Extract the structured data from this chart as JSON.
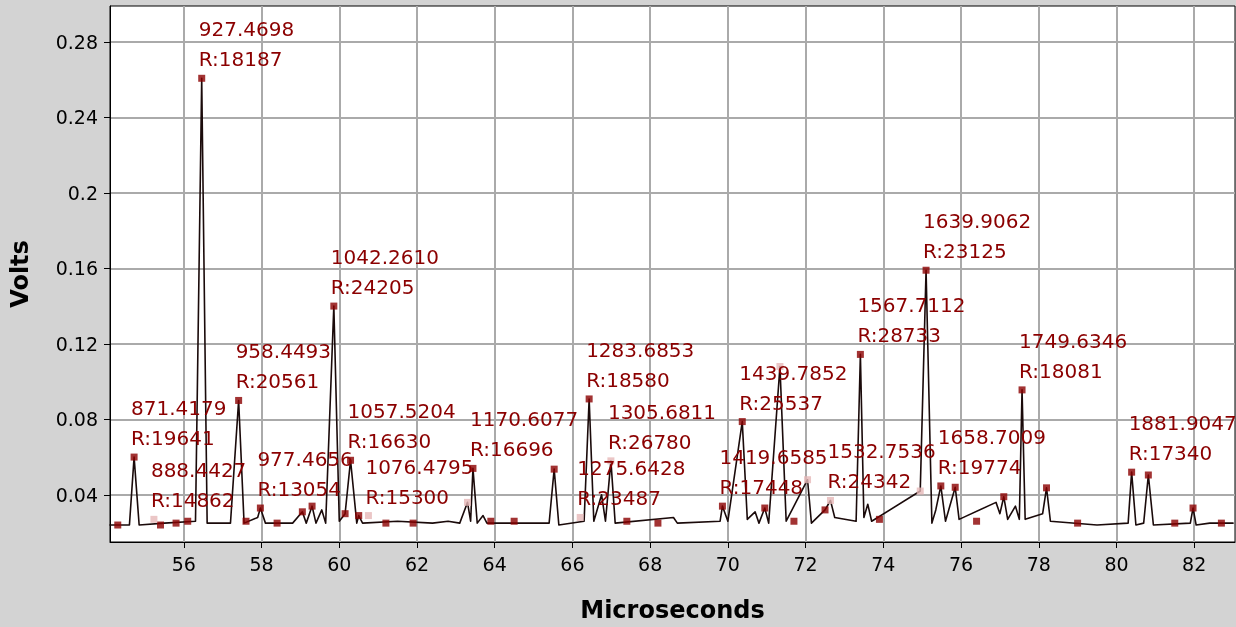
{
  "chart_data": {
    "type": "line",
    "xlabel": "Microseconds",
    "ylabel": "Volts",
    "xlim": [
      54.1,
      83.05
    ],
    "ylim": [
      0.015,
      0.299
    ],
    "xticks": [
      56,
      58,
      60,
      62,
      64,
      66,
      68,
      70,
      72,
      74,
      76,
      78,
      80,
      82
    ],
    "yticks": [
      0.04,
      0.08,
      0.12,
      0.16,
      0.2,
      0.24,
      0.28
    ],
    "grid": true,
    "line_style": "solid",
    "series": [
      {
        "color": "#1a0a0a",
        "marker": "none",
        "x": [
          54.1,
          54.6,
          54.72,
          54.85,
          55.5,
          56.3,
          56.46,
          56.6,
          57.2,
          57.41,
          57.55,
          57.9,
          57.97,
          58.1,
          58.8,
          59.05,
          59.15,
          59.3,
          59.4,
          59.55,
          59.65,
          59.86,
          60.0,
          60.15,
          60.29,
          60.45,
          60.5,
          60.6,
          61.5,
          62.4,
          62.8,
          63.1,
          63.3,
          63.38,
          63.44,
          63.55,
          63.7,
          63.8,
          65.4,
          65.53,
          65.65,
          66.3,
          66.43,
          66.55,
          66.75,
          66.85,
          66.99,
          67.1,
          68.6,
          68.7,
          69.8,
          69.86,
          70.0,
          70.37,
          70.5,
          70.7,
          70.8,
          70.95,
          71.05,
          71.34,
          71.5,
          72.05,
          72.15,
          72.5,
          72.64,
          72.75,
          73.3,
          73.41,
          73.5,
          73.6,
          73.7,
          74.95,
          75.1,
          75.25,
          75.35,
          75.48,
          75.6,
          75.85,
          75.95,
          76.9,
          77.0,
          77.1,
          77.2,
          77.4,
          77.5,
          77.57,
          77.65,
          78.1,
          78.2,
          78.3,
          79.5,
          80.3,
          80.39,
          80.5,
          80.7,
          80.82,
          80.95,
          81.9,
          81.97,
          82.05,
          82.4,
          83.0
        ],
        "values": [
          0.024,
          0.024,
          0.06,
          0.024,
          0.025,
          0.026,
          0.2607,
          0.025,
          0.025,
          0.09,
          0.025,
          0.028,
          0.033,
          0.025,
          0.025,
          0.031,
          0.025,
          0.034,
          0.025,
          0.032,
          0.025,
          0.14,
          0.026,
          0.03,
          0.0583,
          0.025,
          0.029,
          0.025,
          0.026,
          0.025,
          0.026,
          0.025,
          0.036,
          0.026,
          0.054,
          0.025,
          0.029,
          0.025,
          0.025,
          0.0536,
          0.024,
          0.026,
          0.0908,
          0.026,
          0.04,
          0.026,
          0.058,
          0.025,
          0.028,
          0.025,
          0.026,
          0.034,
          0.026,
          0.0788,
          0.027,
          0.031,
          0.025,
          0.033,
          0.025,
          0.108,
          0.026,
          0.048,
          0.025,
          0.032,
          0.037,
          0.028,
          0.026,
          0.1144,
          0.028,
          0.035,
          0.026,
          0.042,
          0.159,
          0.025,
          0.032,
          0.0447,
          0.026,
          0.044,
          0.027,
          0.036,
          0.03,
          0.039,
          0.027,
          0.034,
          0.027,
          0.0956,
          0.027,
          0.03,
          0.0437,
          0.026,
          0.024,
          0.025,
          0.052,
          0.024,
          0.025,
          0.0505,
          0.024,
          0.025,
          0.033,
          0.024,
          0.025,
          0.025
        ]
      },
      {
        "type": "scatter",
        "color": "#8b0000",
        "marker": "square",
        "x": [
          54.3,
          54.72,
          55.4,
          55.8,
          56.1,
          56.46,
          57.41,
          57.6,
          57.97,
          58.4,
          59.05,
          59.3,
          59.86,
          60.15,
          60.29,
          60.5,
          61.2,
          61.9,
          63.44,
          63.9,
          64.5,
          65.53,
          66.43,
          67.4,
          68.2,
          69.86,
          70.37,
          70.95,
          71.7,
          72.5,
          73.41,
          73.9,
          75.1,
          75.48,
          75.85,
          76.4,
          77.1,
          77.57,
          78.2,
          79.0,
          80.39,
          80.82,
          81.5,
          81.97,
          82.7
        ],
        "values": [
          0.024,
          0.06,
          0.024,
          0.025,
          0.026,
          0.2607,
          0.09,
          0.026,
          0.033,
          0.025,
          0.031,
          0.034,
          0.14,
          0.03,
          0.0583,
          0.029,
          0.025,
          0.025,
          0.054,
          0.026,
          0.026,
          0.0536,
          0.0908,
          0.026,
          0.025,
          0.034,
          0.0788,
          0.033,
          0.026,
          0.032,
          0.1144,
          0.027,
          0.159,
          0.0447,
          0.044,
          0.026,
          0.039,
          0.0956,
          0.0437,
          0.025,
          0.052,
          0.0505,
          0.025,
          0.033,
          0.025
        ]
      },
      {
        "type": "scatter",
        "color": "#e6b8b8",
        "marker": "square",
        "x": [
          55.23,
          60.75,
          63.3,
          66.2,
          66.99,
          71.34,
          72.05,
          72.64,
          74.95
        ],
        "values": [
          0.027,
          0.029,
          0.036,
          0.028,
          0.058,
          0.108,
          0.048,
          0.037,
          0.042
        ]
      }
    ],
    "annotations": [
      {
        "text": "871.4179\nR:19641",
        "x": 54.72,
        "y": 0.06
      },
      {
        "text": "888.4427\nR:14862",
        "x": 55.23,
        "y": 0.027
      },
      {
        "text": "927.4698\nR:18187",
        "x": 56.46,
        "y": 0.2607
      },
      {
        "text": "958.4493\nR:20561",
        "x": 57.41,
        "y": 0.09
      },
      {
        "text": "977.4656\nR:13054",
        "x": 57.97,
        "y": 0.033
      },
      {
        "text": "1042.2610\nR:24205",
        "x": 59.86,
        "y": 0.14
      },
      {
        "text": "1057.5204\nR:16630",
        "x": 60.29,
        "y": 0.0583
      },
      {
        "text": "1076.4795\nR:15300",
        "x": 60.75,
        "y": 0.029
      },
      {
        "text": "1170.6077\nR:16696",
        "x": 63.44,
        "y": 0.054
      },
      {
        "text": "1275.6428\nR:23487",
        "x": 66.2,
        "y": 0.028
      },
      {
        "text": "1283.6853\nR:18580",
        "x": 66.43,
        "y": 0.0908
      },
      {
        "text": "1305.6811\nR:26780",
        "x": 66.99,
        "y": 0.058
      },
      {
        "text": "1419.6585\nR:17448",
        "x": 69.86,
        "y": 0.034
      },
      {
        "text": "1439.7852\nR:25537",
        "x": 70.37,
        "y": 0.0788
      },
      {
        "text": "1532.7536\nR:24342",
        "x": 72.64,
        "y": 0.037
      },
      {
        "text": "1567.7112\nR:28733",
        "x": 73.41,
        "y": 0.1144
      },
      {
        "text": "1639.9062\nR:23125",
        "x": 75.1,
        "y": 0.159
      },
      {
        "text": "1658.7009\nR:19774",
        "x": 75.48,
        "y": 0.0447
      },
      {
        "text": "1749.6346\nR:18081",
        "x": 77.57,
        "y": 0.0956
      },
      {
        "text": "1881.9047\nR:17340",
        "x": 80.39,
        "y": 0.052
      }
    ]
  }
}
